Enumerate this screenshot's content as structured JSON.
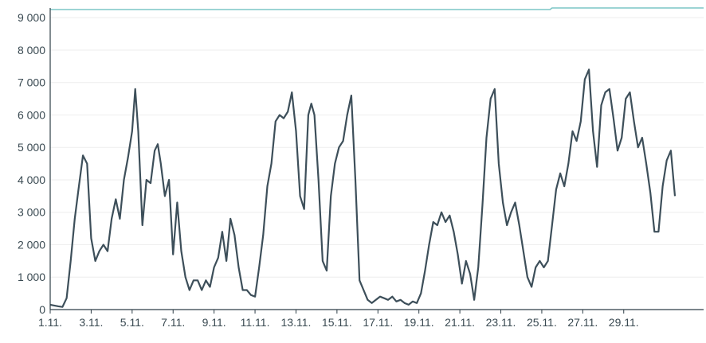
{
  "chart_data": {
    "type": "line",
    "y_ticks": [
      0,
      1000,
      2000,
      3000,
      4000,
      5000,
      6000,
      7000,
      8000,
      9000
    ],
    "y_tick_labels": [
      "0",
      "1 000",
      "2 000",
      "3 000",
      "4 000",
      "5 000",
      "6 000",
      "7 000",
      "8 000",
      "9 000"
    ],
    "x_ticks": [
      1,
      3,
      5,
      7,
      9,
      11,
      13,
      15,
      17,
      19,
      21,
      23,
      25,
      27,
      29
    ],
    "x_tick_labels": [
      "1.11.",
      "3.11.",
      "5.11.",
      "7.11.",
      "9.11.",
      "11.11.",
      "13.11.",
      "15.11.",
      "17.11.",
      "19.11.",
      "21.11.",
      "23.11.",
      "25.11.",
      "27.11.",
      "29.11."
    ],
    "xlim": [
      1,
      32.9
    ],
    "ylim": [
      0,
      9300
    ],
    "grid": "horizontal",
    "series": [
      {
        "color": "#3d4f5a",
        "points": [
          [
            1.0,
            150
          ],
          [
            1.4,
            100
          ],
          [
            1.6,
            80
          ],
          [
            1.8,
            350
          ],
          [
            2.0,
            1500
          ],
          [
            2.2,
            2800
          ],
          [
            2.4,
            3800
          ],
          [
            2.6,
            4750
          ],
          [
            2.8,
            4500
          ],
          [
            3.0,
            2200
          ],
          [
            3.2,
            1500
          ],
          [
            3.4,
            1800
          ],
          [
            3.6,
            2000
          ],
          [
            3.8,
            1800
          ],
          [
            4.0,
            2800
          ],
          [
            4.2,
            3400
          ],
          [
            4.4,
            2800
          ],
          [
            4.6,
            4000
          ],
          [
            4.8,
            4700
          ],
          [
            5.0,
            5500
          ],
          [
            5.15,
            6800
          ],
          [
            5.3,
            5500
          ],
          [
            5.5,
            2600
          ],
          [
            5.7,
            4000
          ],
          [
            5.9,
            3900
          ],
          [
            6.1,
            4900
          ],
          [
            6.25,
            5100
          ],
          [
            6.4,
            4500
          ],
          [
            6.6,
            3500
          ],
          [
            6.8,
            4000
          ],
          [
            7.0,
            1700
          ],
          [
            7.2,
            3300
          ],
          [
            7.4,
            1800
          ],
          [
            7.6,
            1000
          ],
          [
            7.8,
            600
          ],
          [
            8.0,
            900
          ],
          [
            8.2,
            900
          ],
          [
            8.4,
            600
          ],
          [
            8.6,
            900
          ],
          [
            8.8,
            700
          ],
          [
            9.0,
            1300
          ],
          [
            9.2,
            1600
          ],
          [
            9.4,
            2400
          ],
          [
            9.6,
            1500
          ],
          [
            9.8,
            2800
          ],
          [
            10.0,
            2300
          ],
          [
            10.2,
            1300
          ],
          [
            10.4,
            600
          ],
          [
            10.6,
            600
          ],
          [
            10.8,
            450
          ],
          [
            11.0,
            400
          ],
          [
            11.2,
            1300
          ],
          [
            11.4,
            2300
          ],
          [
            11.6,
            3800
          ],
          [
            11.8,
            4500
          ],
          [
            12.0,
            5800
          ],
          [
            12.2,
            6000
          ],
          [
            12.4,
            5900
          ],
          [
            12.6,
            6100
          ],
          [
            12.8,
            6700
          ],
          [
            13.0,
            5500
          ],
          [
            13.2,
            3500
          ],
          [
            13.4,
            3100
          ],
          [
            13.6,
            6000
          ],
          [
            13.75,
            6350
          ],
          [
            13.9,
            6000
          ],
          [
            14.1,
            4000
          ],
          [
            14.3,
            1500
          ],
          [
            14.5,
            1200
          ],
          [
            14.7,
            3500
          ],
          [
            14.9,
            4500
          ],
          [
            15.1,
            5000
          ],
          [
            15.3,
            5200
          ],
          [
            15.5,
            6000
          ],
          [
            15.7,
            6600
          ],
          [
            15.9,
            4000
          ],
          [
            16.1,
            900
          ],
          [
            16.3,
            600
          ],
          [
            16.5,
            300
          ],
          [
            16.7,
            200
          ],
          [
            16.9,
            300
          ],
          [
            17.1,
            400
          ],
          [
            17.3,
            350
          ],
          [
            17.5,
            300
          ],
          [
            17.7,
            400
          ],
          [
            17.9,
            250
          ],
          [
            18.1,
            300
          ],
          [
            18.3,
            200
          ],
          [
            18.5,
            150
          ],
          [
            18.7,
            250
          ],
          [
            18.9,
            200
          ],
          [
            19.1,
            500
          ],
          [
            19.3,
            1200
          ],
          [
            19.5,
            2000
          ],
          [
            19.7,
            2700
          ],
          [
            19.9,
            2600
          ],
          [
            20.1,
            3000
          ],
          [
            20.3,
            2700
          ],
          [
            20.5,
            2900
          ],
          [
            20.7,
            2400
          ],
          [
            20.9,
            1700
          ],
          [
            21.1,
            800
          ],
          [
            21.3,
            1500
          ],
          [
            21.5,
            1100
          ],
          [
            21.7,
            300
          ],
          [
            21.9,
            1300
          ],
          [
            22.1,
            3200
          ],
          [
            22.3,
            5300
          ],
          [
            22.5,
            6500
          ],
          [
            22.7,
            6800
          ],
          [
            22.9,
            4500
          ],
          [
            23.1,
            3300
          ],
          [
            23.3,
            2600
          ],
          [
            23.5,
            3000
          ],
          [
            23.7,
            3300
          ],
          [
            23.9,
            2600
          ],
          [
            24.1,
            1800
          ],
          [
            24.3,
            1000
          ],
          [
            24.5,
            700
          ],
          [
            24.7,
            1300
          ],
          [
            24.9,
            1500
          ],
          [
            25.1,
            1300
          ],
          [
            25.3,
            1500
          ],
          [
            25.5,
            2600
          ],
          [
            25.7,
            3700
          ],
          [
            25.9,
            4200
          ],
          [
            26.1,
            3800
          ],
          [
            26.3,
            4500
          ],
          [
            26.5,
            5500
          ],
          [
            26.7,
            5200
          ],
          [
            26.9,
            5800
          ],
          [
            27.1,
            7100
          ],
          [
            27.3,
            7400
          ],
          [
            27.5,
            5500
          ],
          [
            27.7,
            4400
          ],
          [
            27.9,
            6300
          ],
          [
            28.1,
            6700
          ],
          [
            28.3,
            6800
          ],
          [
            28.5,
            5900
          ],
          [
            28.7,
            4900
          ],
          [
            28.9,
            5300
          ],
          [
            29.1,
            6500
          ],
          [
            29.3,
            6700
          ],
          [
            29.5,
            5800
          ],
          [
            29.7,
            5000
          ],
          [
            29.9,
            5300
          ],
          [
            30.1,
            4500
          ],
          [
            30.3,
            3600
          ],
          [
            30.5,
            2400
          ],
          [
            30.7,
            2400
          ],
          [
            30.9,
            3800
          ],
          [
            31.1,
            4600
          ],
          [
            31.3,
            4900
          ],
          [
            31.5,
            3500
          ]
        ]
      },
      {
        "color": "#7cc5c5",
        "points": [
          [
            1.0,
            9250
          ],
          [
            25.4,
            9250
          ],
          [
            25.5,
            9300
          ],
          [
            32.9,
            9300
          ]
        ]
      }
    ]
  }
}
